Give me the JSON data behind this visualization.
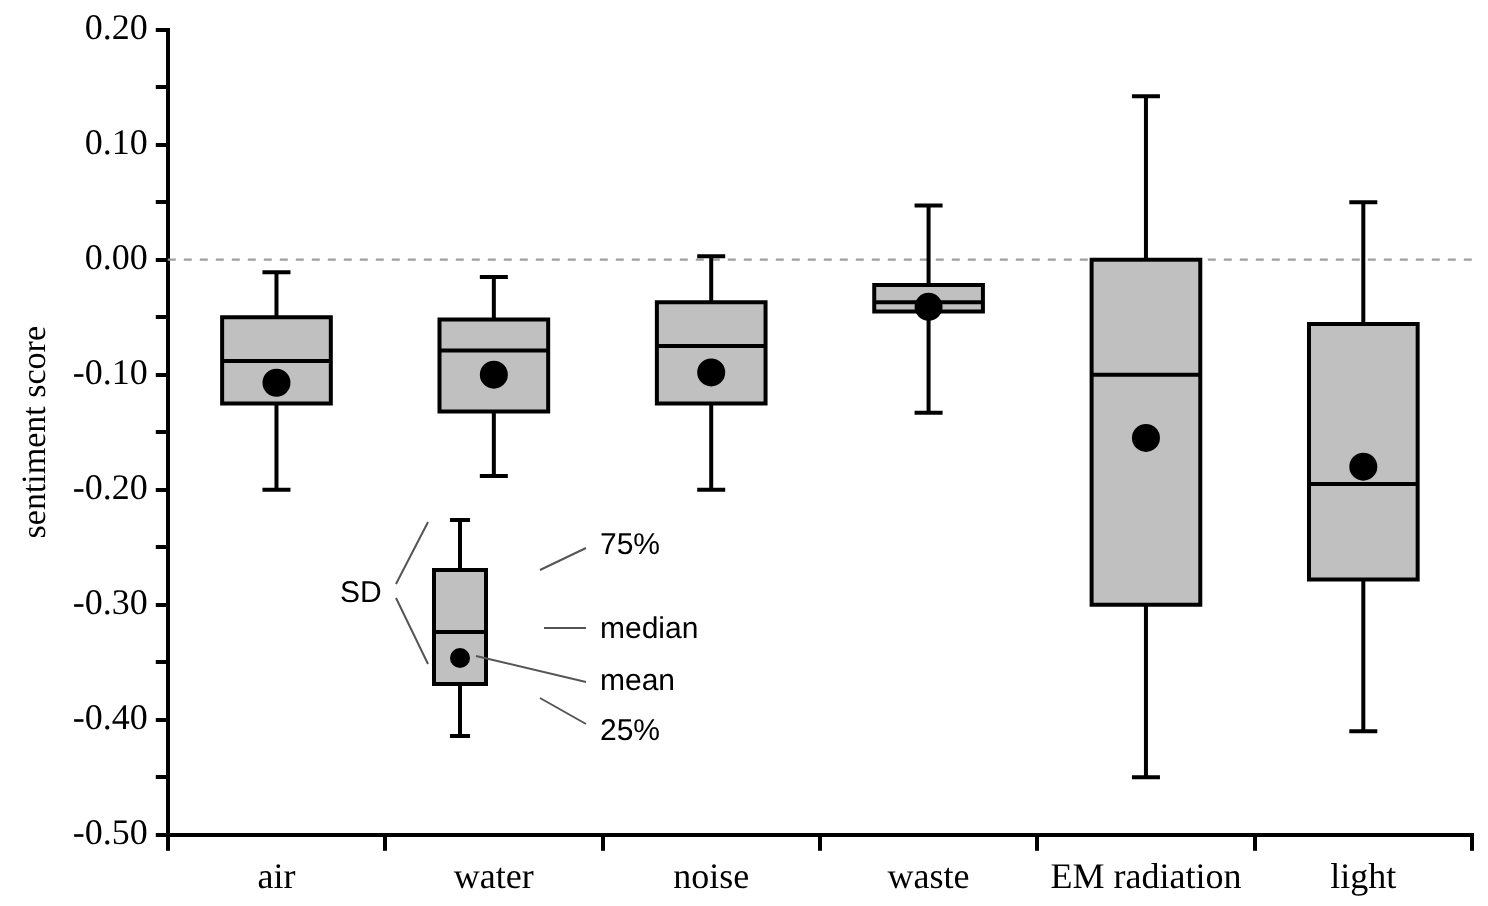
{
  "chart_data": {
    "type": "box",
    "ylabel": "sentiment score",
    "categories": [
      "air",
      "water",
      "noise",
      "waste",
      "EM radiation",
      "light"
    ],
    "color": "#c0c0c0",
    "marker": "circle",
    "grid": false,
    "legend": false,
    "boxes": [
      {
        "low": -0.2,
        "q1": -0.125,
        "median": -0.088,
        "q3": -0.05,
        "high": -0.011,
        "mean": -0.107
      },
      {
        "low": -0.188,
        "q1": -0.132,
        "median": -0.079,
        "q3": -0.052,
        "high": -0.015,
        "mean": -0.1
      },
      {
        "low": -0.2,
        "q1": -0.125,
        "median": -0.075,
        "q3": -0.037,
        "high": 0.003,
        "mean": -0.098
      },
      {
        "low": -0.133,
        "q1": -0.045,
        "median": -0.037,
        "q3": -0.022,
        "high": 0.047,
        "mean": -0.041
      },
      {
        "low": -0.45,
        "q1": -0.3,
        "median": -0.1,
        "q3": 0,
        "high": 0.142,
        "mean": -0.155
      },
      {
        "low": -0.41,
        "q1": -0.278,
        "median": -0.195,
        "q3": -0.056,
        "high": 0.05,
        "mean": -0.18
      }
    ],
    "ylim": [
      -0.5,
      0.2
    ],
    "yticks": [
      {
        "value": -0.5,
        "label": "-0.50"
      },
      {
        "value": -0.45,
        "label": null
      },
      {
        "value": -0.4,
        "label": "-0.40"
      },
      {
        "value": -0.35,
        "label": null
      },
      {
        "value": -0.3,
        "label": "-0.30"
      },
      {
        "value": -0.25,
        "label": null
      },
      {
        "value": -0.2,
        "label": "-0.20"
      },
      {
        "value": -0.15,
        "label": null
      },
      {
        "value": -0.1,
        "label": "-0.10"
      },
      {
        "value": -0.05,
        "label": null
      },
      {
        "value": 0,
        "label": "0.00"
      },
      {
        "value": 0.05,
        "label": null
      },
      {
        "value": 0.1,
        "label": "0.10"
      },
      {
        "value": 0.15,
        "label": null
      },
      {
        "value": 0.2,
        "label": "0.20"
      }
    ],
    "ref_lines": [
      {
        "axis": "y",
        "value": 0,
        "color": "#a0a0a0",
        "line_style": "dashed"
      }
    ],
    "annotations": [
      "SD",
      "75%",
      "median",
      "mean",
      "25%"
    ]
  }
}
